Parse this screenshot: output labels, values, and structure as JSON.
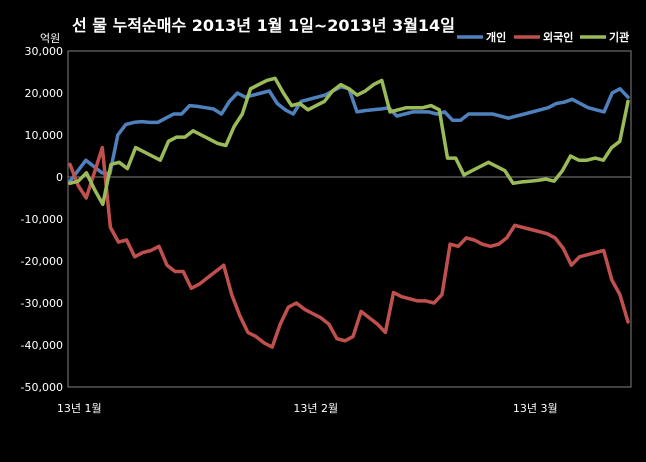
{
  "chart_data": {
    "type": "line",
    "title": "선 물 누적순매수 2013년 1월 1일~2013년 3월14일",
    "ylabel": "억원",
    "ylim": [
      -50000,
      30000
    ],
    "yticks": [
      "30,000",
      "20,000",
      "10,000",
      "0",
      "-10,000",
      "-20,000",
      "-30,000",
      "-40,000",
      "-50,000"
    ],
    "xtick_labels": [
      "13년 1월",
      "13년 2월",
      "13년 3월"
    ],
    "legend_position": "top-right",
    "grid": false,
    "series": [
      {
        "name": "개인",
        "color": "#4f81bd",
        "values": [
          -1000,
          1500,
          4000,
          2500,
          1000,
          800,
          10000,
          12500,
          13000,
          13200,
          13000,
          13000,
          14000,
          15000,
          15000,
          17000,
          16800,
          16500,
          16200,
          15000,
          18000,
          20000,
          19000,
          19500,
          20000,
          20500,
          17500,
          16000,
          15000,
          18000,
          18500,
          19000,
          19500,
          20500,
          21500,
          21000,
          15500,
          15800,
          16000,
          16200,
          16500,
          14500,
          15000,
          15500,
          15500,
          15500,
          15000,
          15500,
          13500,
          13500,
          15000,
          15000,
          15000,
          15000,
          14500,
          14000,
          14500,
          15000,
          15500,
          16000,
          16500,
          17500,
          17800,
          18500,
          17500,
          16500,
          16000,
          15500,
          20000,
          21000,
          19000
        ]
      },
      {
        "name": "외국인",
        "color": "#c0504d",
        "values": [
          3000,
          -2000,
          -5000,
          1000,
          7000,
          -12000,
          -15500,
          -15000,
          -19000,
          -18000,
          -17500,
          -16500,
          -21000,
          -22500,
          -22500,
          -26500,
          -25500,
          -24000,
          -22500,
          -21000,
          -28000,
          -33000,
          -37000,
          -38000,
          -39500,
          -40500,
          -35000,
          -31000,
          -30000,
          -31500,
          -32500,
          -33500,
          -35000,
          -38500,
          -39000,
          -38000,
          -32000,
          -33500,
          -35000,
          -37000,
          -27500,
          -28500,
          -29000,
          -29500,
          -29500,
          -30000,
          -28000,
          -16000,
          -16500,
          -14500,
          -15000,
          -16000,
          -16500,
          -16000,
          -14500,
          -11500,
          -12000,
          -12500,
          -13000,
          -13500,
          -14500,
          -17000,
          -21000,
          -19000,
          -18500,
          -18000,
          -17500,
          -24500,
          -28000,
          -34500
        ]
      },
      {
        "name": "기관",
        "color": "#9bbb59",
        "values": [
          -1500,
          -1000,
          1000,
          -3000,
          -6500,
          3000,
          3500,
          2000,
          7000,
          6000,
          5000,
          4000,
          8500,
          9500,
          9500,
          11000,
          10000,
          9000,
          8000,
          7500,
          12000,
          15000,
          21000,
          22000,
          23000,
          23500,
          20000,
          17000,
          17500,
          16000,
          17000,
          18000,
          20500,
          22000,
          21000,
          19500,
          20500,
          22000,
          23000,
          15500,
          16000,
          16500,
          16500,
          16500,
          17000,
          16000,
          4500,
          4500,
          500,
          1500,
          2500,
          3500,
          2500,
          1500,
          -1500,
          -1200,
          -1000,
          -800,
          -500,
          -1000,
          1500,
          5000,
          4000,
          4000,
          4500,
          4000,
          7000,
          8500,
          18000
        ]
      }
    ]
  }
}
